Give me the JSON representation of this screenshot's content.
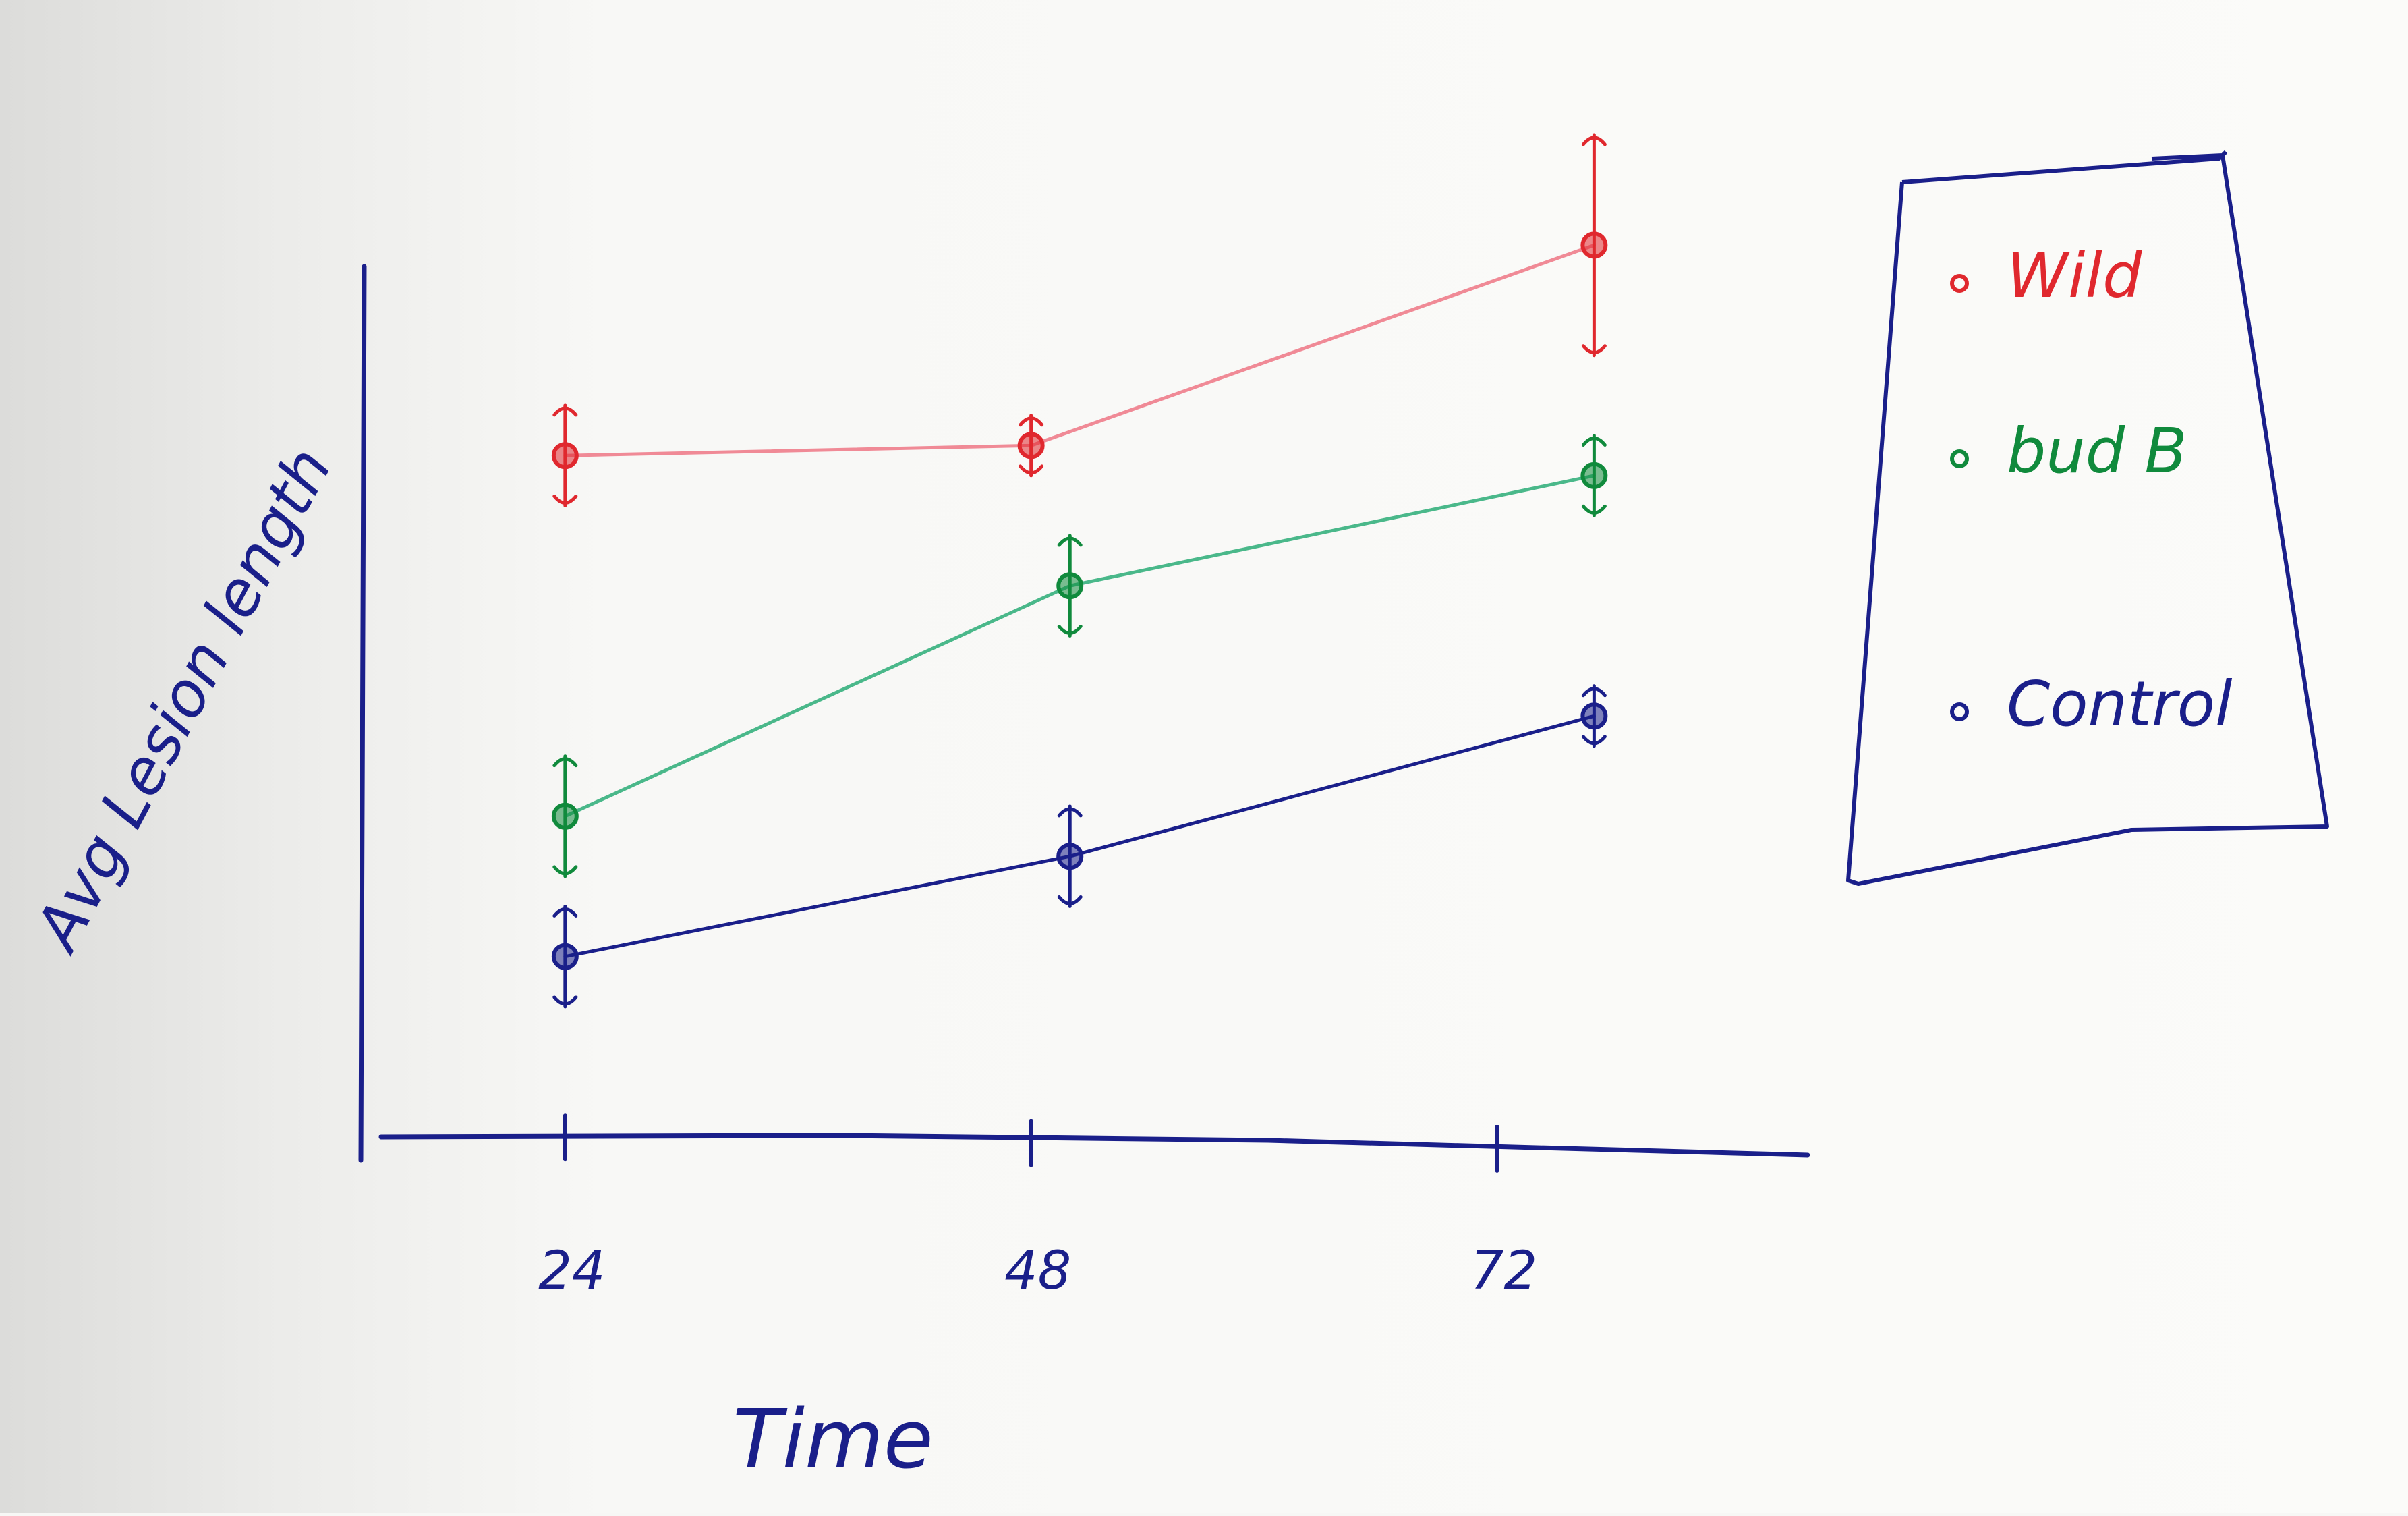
{
  "chart_data": {
    "type": "line",
    "xlabel": "Time",
    "ylabel": "Avg Lesion length",
    "categories": [
      "24",
      "48",
      "72"
    ],
    "x": [
      24,
      48,
      72
    ],
    "xlim": [
      14,
      88
    ],
    "ylim": [
      0,
      100
    ],
    "grid": false,
    "legend_position": "top-right",
    "series": [
      {
        "name": "Wild",
        "color": "#e0282e",
        "line_color": "#f08a96",
        "x": [
          24,
          48,
          77
        ],
        "values": [
          68,
          69,
          89
        ],
        "err": [
          5,
          3,
          11
        ]
      },
      {
        "name": "bud B",
        "color": "#108a3c",
        "line_color": "#4ab88a",
        "x": [
          24,
          50,
          77
        ],
        "values": [
          32,
          55,
          66
        ],
        "err": [
          6,
          5,
          4
        ]
      },
      {
        "name": "Control",
        "color": "#1a1f8a",
        "line_color": "#1a1f8a",
        "x": [
          24,
          50,
          77
        ],
        "values": [
          18,
          28,
          42
        ],
        "err": [
          5,
          5,
          3
        ]
      }
    ]
  }
}
